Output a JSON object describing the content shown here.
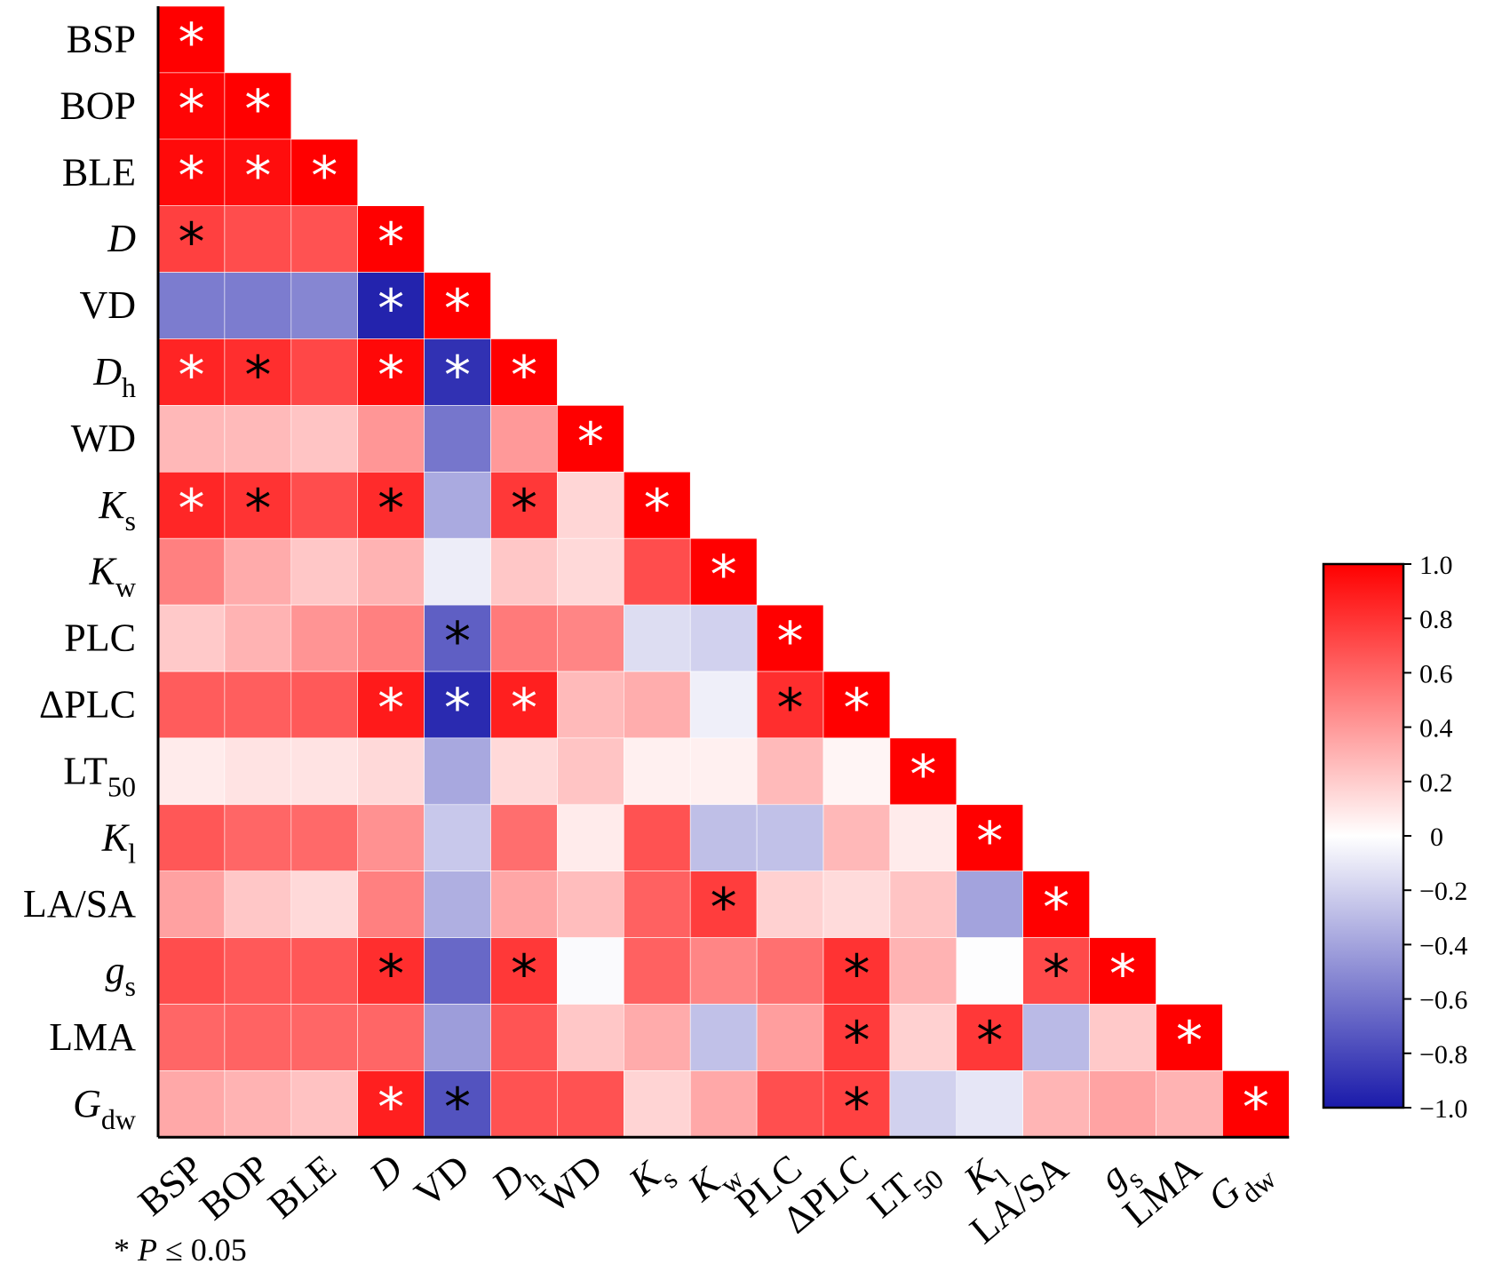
{
  "chart_data": {
    "type": "heatmap",
    "title": "",
    "xlabel": "",
    "ylabel": "",
    "shape": "lower-triangle",
    "variables": [
      {
        "base": "BSP",
        "sub": "",
        "italic": false
      },
      {
        "base": "BOP",
        "sub": "",
        "italic": false
      },
      {
        "base": "BLE",
        "sub": "",
        "italic": false
      },
      {
        "base": "D",
        "sub": "",
        "italic": true
      },
      {
        "base": "VD",
        "sub": "",
        "italic": false
      },
      {
        "base": "D",
        "sub": "h",
        "italic": true
      },
      {
        "base": "WD",
        "sub": "",
        "italic": false
      },
      {
        "base": "K",
        "sub": "s",
        "italic": true
      },
      {
        "base": "K",
        "sub": "w",
        "italic": true
      },
      {
        "base": "PLC",
        "sub": "",
        "italic": false
      },
      {
        "base": "ΔPLC",
        "sub": "",
        "italic": false
      },
      {
        "base": "LT",
        "sub": "50",
        "italic": false
      },
      {
        "base": "K",
        "sub": "l",
        "italic": true
      },
      {
        "base": "LA/SA",
        "sub": "",
        "italic": false
      },
      {
        "base": "g",
        "sub": "s",
        "italic": true
      },
      {
        "base": "LMA",
        "sub": "",
        "italic": false
      },
      {
        "base": "G",
        "sub": "dw",
        "italic": true
      }
    ],
    "values": [
      [
        1.0
      ],
      [
        0.98,
        1.0
      ],
      [
        0.96,
        0.95,
        1.0
      ],
      [
        0.75,
        0.7,
        0.68,
        1.0
      ],
      [
        -0.57,
        -0.57,
        -0.53,
        -0.96,
        1.0
      ],
      [
        0.86,
        0.82,
        0.72,
        0.97,
        -0.9,
        1.0
      ],
      [
        0.28,
        0.27,
        0.23,
        0.41,
        -0.6,
        0.4,
        1.0
      ],
      [
        0.85,
        0.8,
        0.7,
        0.83,
        -0.37,
        0.78,
        0.16,
        1.0
      ],
      [
        0.5,
        0.33,
        0.22,
        0.3,
        -0.08,
        0.22,
        0.15,
        0.7,
        1.0
      ],
      [
        0.21,
        0.3,
        0.42,
        0.5,
        -0.7,
        0.52,
        0.48,
        -0.15,
        -0.2,
        1.0
      ],
      [
        0.64,
        0.63,
        0.65,
        0.9,
        -0.93,
        0.88,
        0.27,
        0.32,
        -0.07,
        0.82,
        1.0
      ],
      [
        0.08,
        0.11,
        0.11,
        0.15,
        -0.38,
        0.15,
        0.23,
        0.06,
        0.06,
        0.27,
        0.04,
        1.0
      ],
      [
        0.66,
        0.6,
        0.59,
        0.43,
        -0.24,
        0.57,
        0.08,
        0.68,
        -0.28,
        -0.27,
        0.28,
        0.08,
        1.0
      ],
      [
        0.37,
        0.22,
        0.15,
        0.5,
        -0.35,
        0.35,
        0.26,
        0.62,
        0.76,
        0.18,
        0.14,
        0.23,
        -0.4,
        1.0
      ],
      [
        0.7,
        0.65,
        0.66,
        0.82,
        -0.66,
        0.78,
        -0.02,
        0.62,
        0.48,
        0.56,
        0.8,
        0.3,
        -0.01,
        0.71,
        1.0
      ],
      [
        0.6,
        0.61,
        0.6,
        0.6,
        -0.43,
        0.67,
        0.22,
        0.33,
        -0.27,
        0.38,
        0.77,
        0.18,
        0.78,
        -0.3,
        0.21,
        1.0
      ],
      [
        0.34,
        0.3,
        0.24,
        0.88,
        -0.75,
        0.68,
        0.68,
        0.17,
        0.34,
        0.69,
        0.74,
        -0.2,
        -0.11,
        0.29,
        0.36,
        0.3,
        1.0
      ]
    ],
    "significant": [
      [
        1
      ],
      [
        1,
        1
      ],
      [
        1,
        1,
        1
      ],
      [
        1,
        0,
        0,
        1
      ],
      [
        0,
        0,
        0,
        1,
        1
      ],
      [
        1,
        1,
        0,
        1,
        1,
        1
      ],
      [
        0,
        0,
        0,
        0,
        0,
        0,
        1
      ],
      [
        1,
        1,
        0,
        1,
        0,
        1,
        0,
        1
      ],
      [
        0,
        0,
        0,
        0,
        0,
        0,
        0,
        0,
        1
      ],
      [
        0,
        0,
        0,
        0,
        1,
        0,
        0,
        0,
        0,
        1
      ],
      [
        0,
        0,
        0,
        1,
        1,
        1,
        0,
        0,
        0,
        1,
        1
      ],
      [
        0,
        0,
        0,
        0,
        0,
        0,
        0,
        0,
        0,
        0,
        0,
        1
      ],
      [
        0,
        0,
        0,
        0,
        0,
        0,
        0,
        0,
        0,
        0,
        0,
        0,
        1
      ],
      [
        0,
        0,
        0,
        0,
        0,
        0,
        0,
        0,
        1,
        0,
        0,
        0,
        0,
        1
      ],
      [
        0,
        0,
        0,
        1,
        0,
        1,
        0,
        0,
        0,
        0,
        1,
        0,
        0,
        1,
        1
      ],
      [
        0,
        0,
        0,
        0,
        0,
        0,
        0,
        0,
        0,
        0,
        1,
        0,
        1,
        0,
        0,
        1
      ],
      [
        0,
        0,
        0,
        1,
        1,
        0,
        0,
        0,
        0,
        0,
        1,
        0,
        0,
        0,
        0,
        0,
        1
      ]
    ],
    "star_marker": "*",
    "colorbar": {
      "range": [
        -1.0,
        1.0
      ],
      "ticks": [
        "1.0",
        "0.8",
        "0.6",
        "0.4",
        "0.2",
        "0",
        "-0.2",
        "-0.4",
        "-0.6",
        "-0.8",
        "-1.0"
      ],
      "colors": {
        "negative": "#1a1aaa",
        "zero": "#ffffff",
        "positive": "#ff0000"
      }
    },
    "footnote": {
      "prefix": "* ",
      "italic_part": "P",
      "suffix": " ≤ 0.05"
    }
  }
}
